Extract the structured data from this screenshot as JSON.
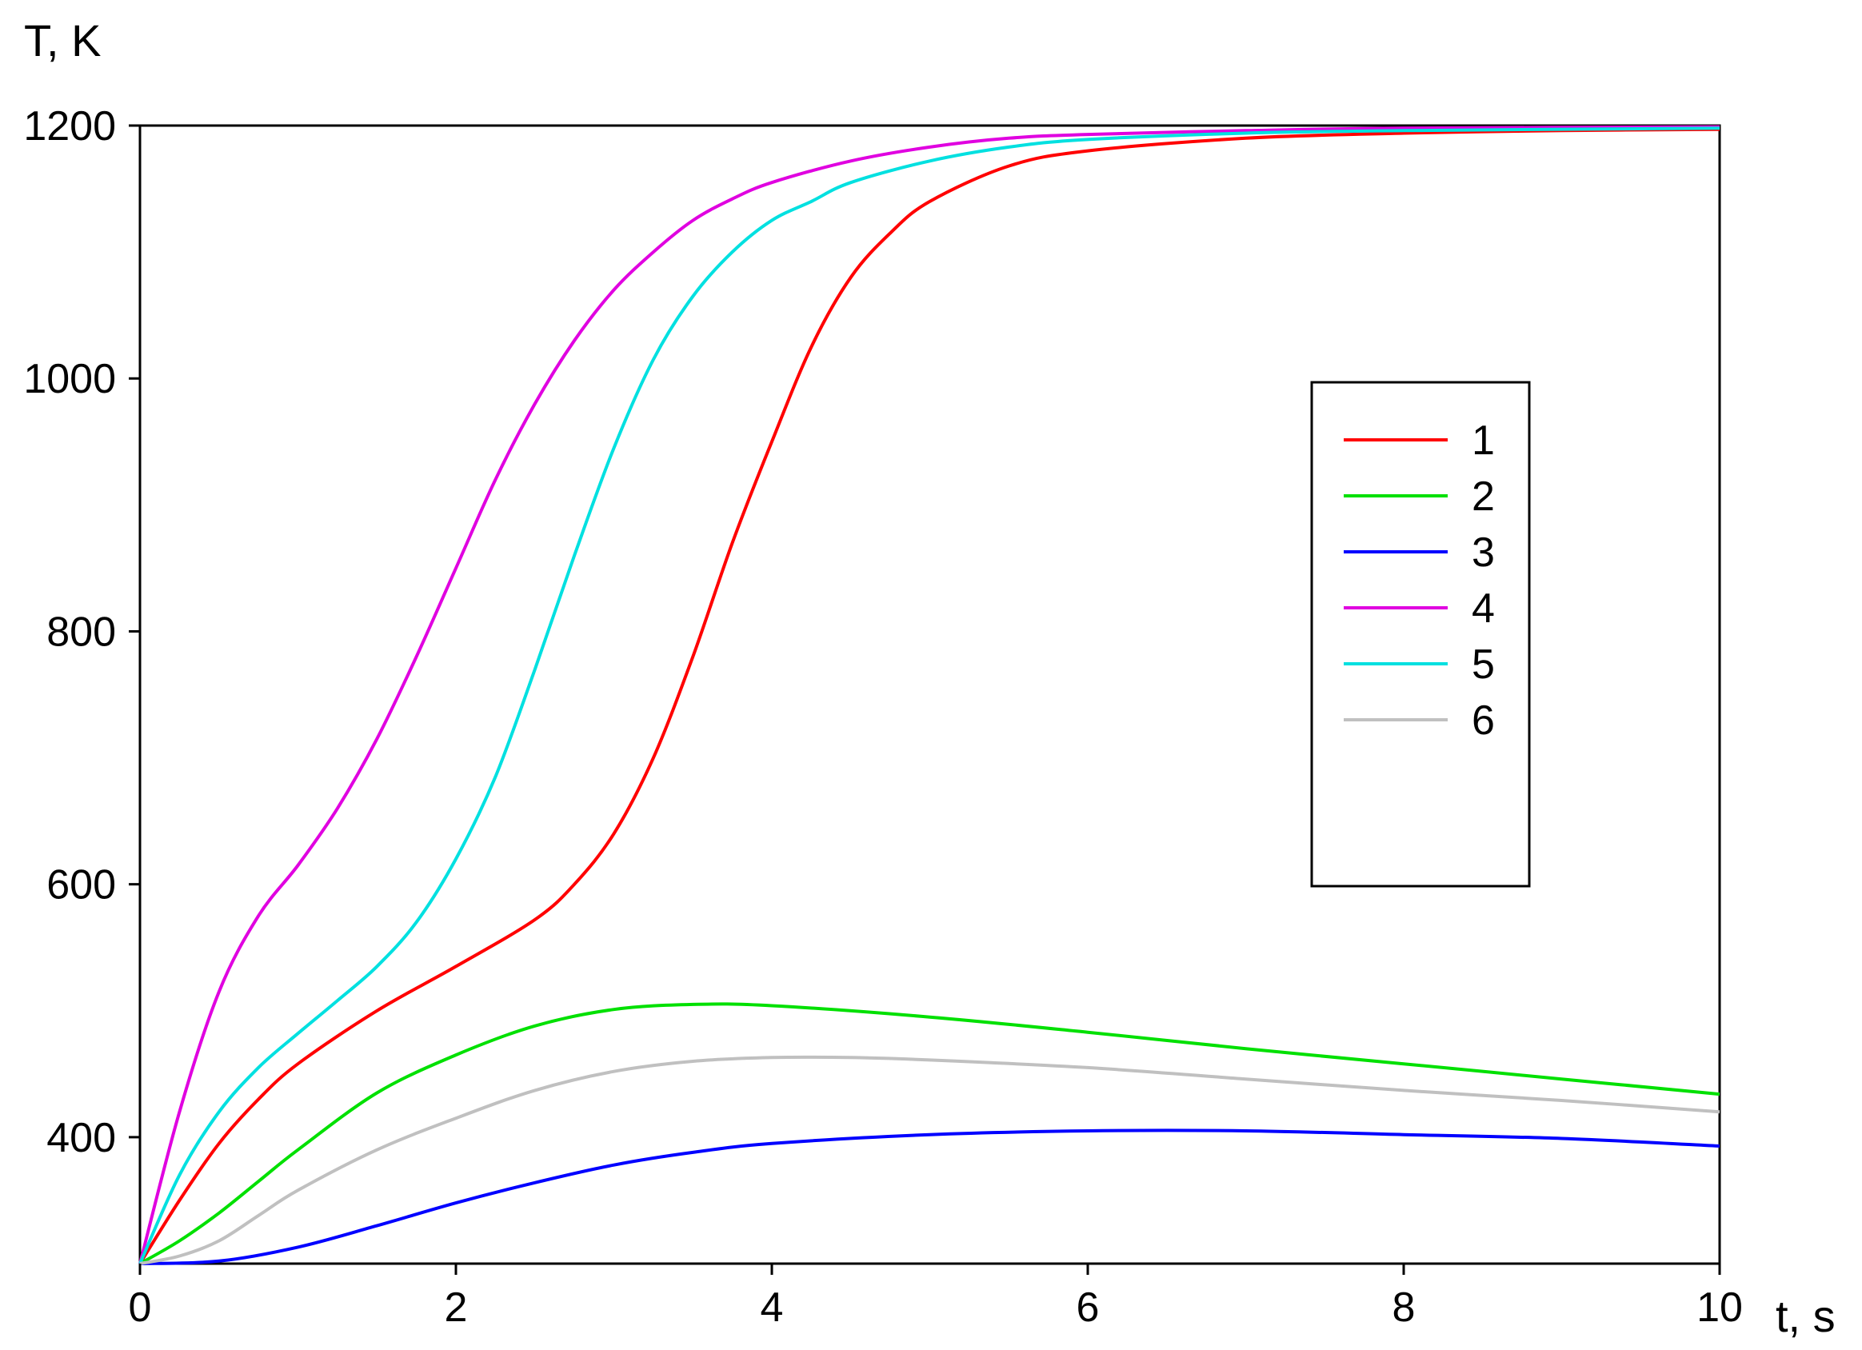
{
  "chart_data": {
    "type": "line",
    "title": "",
    "xlabel": "t, s",
    "ylabel": "T, K",
    "xlim": [
      0,
      10
    ],
    "ylim": [
      300,
      1200
    ],
    "xticks": [
      0,
      2,
      4,
      6,
      8,
      10
    ],
    "yticks": [
      400,
      600,
      800,
      1000,
      1200
    ],
    "grid": false,
    "legend_position": "right",
    "series": [
      {
        "name": "1",
        "color": "#ff0000",
        "x": [
          0,
          0.25,
          0.5,
          0.75,
          1,
          1.5,
          2,
          2.5,
          2.75,
          3,
          3.25,
          3.5,
          3.75,
          4,
          4.25,
          4.5,
          4.75,
          5,
          5.5,
          6,
          7,
          8,
          9,
          10
        ],
        "y": [
          300,
          350,
          395,
          430,
          458,
          500,
          535,
          572,
          600,
          640,
          700,
          780,
          870,
          950,
          1025,
          1080,
          1115,
          1140,
          1168,
          1180,
          1190,
          1194,
          1196,
          1197
        ]
      },
      {
        "name": "2",
        "color": "#00e000",
        "x": [
          0,
          0.25,
          0.5,
          0.75,
          1,
          1.5,
          2,
          2.5,
          3,
          3.5,
          4,
          5,
          6,
          7,
          8,
          9,
          10
        ],
        "y": [
          300,
          318,
          340,
          365,
          390,
          435,
          465,
          488,
          501,
          505,
          504,
          495,
          483,
          470,
          458,
          446,
          434
        ]
      },
      {
        "name": "3",
        "color": "#0000ff",
        "x": [
          0,
          0.5,
          1,
          1.5,
          2,
          2.5,
          3,
          3.5,
          4,
          5,
          6,
          7,
          8,
          9,
          10
        ],
        "y": [
          300,
          302,
          313,
          330,
          348,
          364,
          378,
          388,
          395,
          402,
          405,
          405,
          402,
          399,
          393
        ]
      },
      {
        "name": "4",
        "color": "#e000e0",
        "x": [
          0,
          0.25,
          0.5,
          0.75,
          1,
          1.25,
          1.5,
          1.75,
          2,
          2.25,
          2.5,
          2.75,
          3,
          3.25,
          3.5,
          3.75,
          4,
          4.5,
          5,
          5.5,
          6,
          7,
          8,
          10
        ],
        "y": [
          300,
          420,
          515,
          575,
          615,
          660,
          715,
          780,
          850,
          920,
          980,
          1030,
          1070,
          1100,
          1125,
          1142,
          1155,
          1172,
          1183,
          1190,
          1193,
          1196,
          1198,
          1199
        ]
      },
      {
        "name": "5",
        "color": "#00e0e0",
        "x": [
          0,
          0.25,
          0.5,
          0.75,
          1,
          1.25,
          1.5,
          1.75,
          2,
          2.25,
          2.5,
          2.75,
          3,
          3.25,
          3.5,
          3.75,
          4,
          4.25,
          4.5,
          5,
          5.5,
          6,
          7,
          8,
          10
        ],
        "y": [
          300,
          370,
          420,
          455,
          482,
          508,
          535,
          570,
          620,
          685,
          770,
          860,
          945,
          1015,
          1065,
          1100,
          1125,
          1140,
          1155,
          1172,
          1183,
          1189,
          1194,
          1196,
          1198
        ]
      },
      {
        "name": "6",
        "color": "#c0c0c0",
        "x": [
          0,
          0.25,
          0.5,
          0.75,
          1,
          1.5,
          2,
          2.5,
          3,
          3.5,
          4,
          4.5,
          5,
          6,
          7,
          8,
          9,
          10
        ],
        "y": [
          300,
          306,
          318,
          338,
          358,
          390,
          415,
          437,
          452,
          460,
          463,
          463,
          461,
          455,
          446,
          437,
          429,
          420
        ]
      }
    ]
  }
}
